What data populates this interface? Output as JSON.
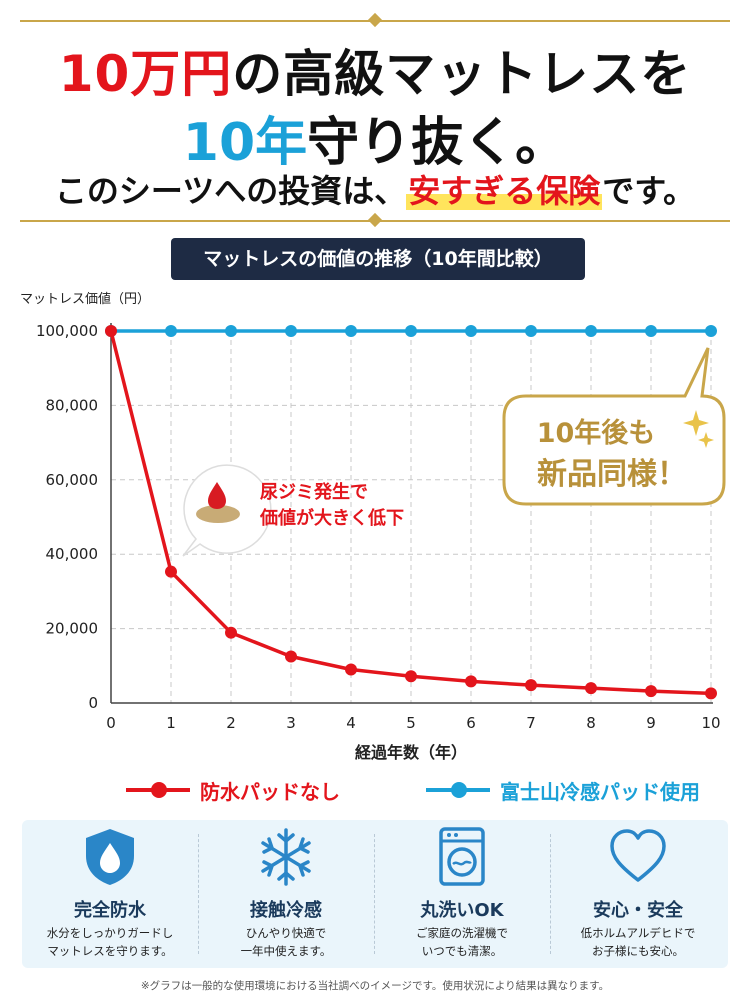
{
  "headline": {
    "line1_red": "10万円",
    "line1_rest": "の高級マットレスを",
    "line2_blue": "10年",
    "line2_rest": "守り抜く。",
    "line3_pre": "このシーツへの投資は、",
    "line3_hl": "安すぎる保険",
    "line3_post": "です。"
  },
  "colors": {
    "red": "#e3151c",
    "blue": "#1ba1d8",
    "gold": "#c9a64a",
    "navy": "#1e2b44"
  },
  "chart_data": {
    "type": "line",
    "title": "マットレスの価値の推移（10年間比較）",
    "ylabel": "マットレス価値（円）",
    "xlabel": "経過年数（年）",
    "x": [
      0,
      1,
      2,
      3,
      4,
      5,
      6,
      7,
      8,
      9,
      10
    ],
    "xlim": [
      0,
      10
    ],
    "ylim": [
      0,
      100000
    ],
    "yticks": [
      0,
      20000,
      40000,
      60000,
      80000,
      100000
    ],
    "ytick_labels": [
      "0",
      "20,000",
      "40,000",
      "60,000",
      "80,000",
      "100,000"
    ],
    "grid": true,
    "legend_position": "bottom",
    "series": [
      {
        "name": "防水パッドなし",
        "color": "#e3151c",
        "values": [
          100000,
          35300,
          18900,
          12500,
          9000,
          7200,
          5800,
          4800,
          4000,
          3200,
          2600
        ]
      },
      {
        "name": "富士山冷感パッド使用",
        "color": "#1ba1d8",
        "values": [
          100000,
          100000,
          100000,
          100000,
          100000,
          100000,
          100000,
          100000,
          100000,
          100000,
          100000
        ]
      }
    ],
    "annotations": [
      {
        "lines": [
          "尿ジミ発生で",
          "価値が大きく低下"
        ],
        "x": 1,
        "y": 35300,
        "icon": "stain-drop-icon"
      },
      {
        "lines": [
          "10年後も",
          "新品同様！"
        ],
        "x": 10,
        "y": 100000,
        "icon": "sparkle-icon"
      }
    ]
  },
  "features": [
    {
      "icon": "shield-drop-icon",
      "title": "完全防水",
      "desc": [
        "水分をしっかりガードし",
        "マットレスを守ります。"
      ]
    },
    {
      "icon": "snowflake-icon",
      "title": "接触冷感",
      "desc": [
        "ひんやり快適で",
        "一年中使えます。"
      ]
    },
    {
      "icon": "washing-machine-icon",
      "title": "丸洗いOK",
      "desc": [
        "ご家庭の洗濯機で",
        "いつでも清潔。"
      ]
    },
    {
      "icon": "heart-icon",
      "title": "安心・安全",
      "desc": [
        "低ホルムアルデヒドで",
        "お子様にも安心。"
      ]
    }
  ],
  "footnote": "※グラフは一般的な使用環境における当社調べのイメージです。使用状況により結果は異なります。"
}
